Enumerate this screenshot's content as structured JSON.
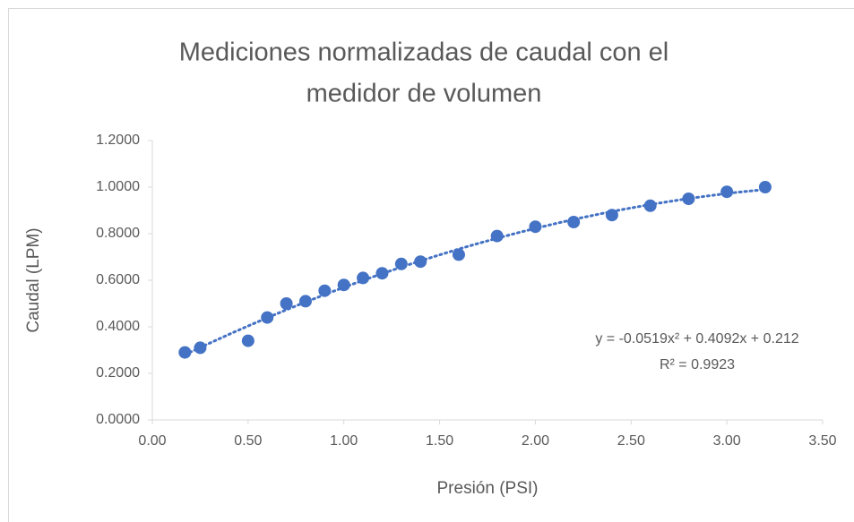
{
  "chart_data": {
    "type": "scatter",
    "title": [
      "Mediciones normalizadas de caudal con el",
      "medidor de volumen"
    ],
    "x_label": "Presión (PSI)",
    "y_label": "Caudal (LPM)",
    "series": [
      {
        "name": "Caudal",
        "color": "#4472c4",
        "x": [
          0.17,
          0.25,
          0.5,
          0.6,
          0.7,
          0.8,
          0.9,
          1.0,
          1.1,
          1.2,
          1.3,
          1.4,
          1.6,
          1.8,
          2.0,
          2.2,
          2.4,
          2.6,
          2.8,
          3.0,
          3.2
        ],
        "values": [
          0.29,
          0.31,
          0.34,
          0.44,
          0.5,
          0.51,
          0.555,
          0.58,
          0.61,
          0.63,
          0.67,
          0.68,
          0.71,
          0.79,
          0.83,
          0.85,
          0.88,
          0.92,
          0.95,
          0.98,
          1.0
        ]
      }
    ],
    "trendline": {
      "type": "polynomial",
      "coefficients": [
        -0.0519,
        0.4092,
        0.212
      ],
      "color": "#4472c4",
      "labels": [
        "y = -0.0519x² + 0.4092x + 0.212",
        "R² = 0.9923"
      ]
    },
    "xlim": [
      0,
      3.5
    ],
    "xticks": [
      {
        "value": 0,
        "label": "0.00"
      },
      {
        "value": 0.5,
        "label": "0.50"
      },
      {
        "value": 1,
        "label": "1.00"
      },
      {
        "value": 1.5,
        "label": "1.50"
      },
      {
        "value": 2,
        "label": "2.00"
      },
      {
        "value": 2.5,
        "label": "2.50"
      },
      {
        "value": 3,
        "label": "3.00"
      },
      {
        "value": 3.5,
        "label": "3.50"
      }
    ],
    "ylim": [
      0,
      1.2
    ],
    "yticks": [
      {
        "value": 0,
        "label": "0.0000"
      },
      {
        "value": 0.2,
        "label": "0.2000"
      },
      {
        "value": 0.4,
        "label": "0.4000"
      },
      {
        "value": 0.6,
        "label": "0.6000"
      },
      {
        "value": 0.8,
        "label": "0.8000"
      },
      {
        "value": 1,
        "label": "1.0000"
      },
      {
        "value": 1.2,
        "label": "1.2000"
      }
    ],
    "grid": false
  }
}
